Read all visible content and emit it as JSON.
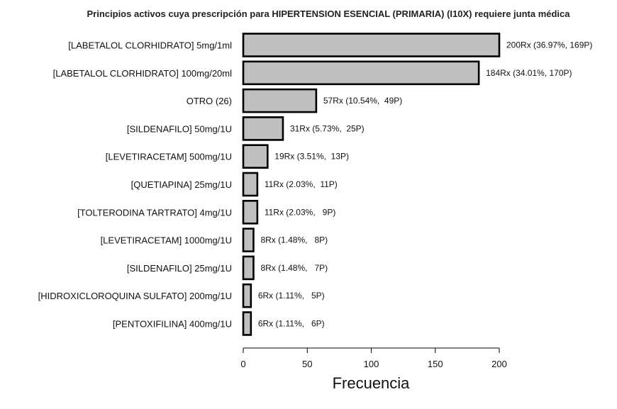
{
  "chart_data": {
    "type": "bar",
    "orientation": "horizontal",
    "title": "Principios activos cuya prescripción para HIPERTENSION ESENCIAL (PRIMARIA) (I10X) requiere junta médica",
    "xlabel": "Frecuencia",
    "ylabel": "",
    "xlim": [
      0,
      200
    ],
    "x_ticks": [
      0,
      50,
      100,
      150,
      200
    ],
    "bar_color": "#c0c0c0",
    "bar_stroke": "#000000",
    "categories": [
      "[LABETALOL CLORHIDRATO] 5mg/1ml",
      "[LABETALOL CLORHIDRATO] 100mg/20ml",
      "OTRO (26)",
      "[SILDENAFILO] 50mg/1U",
      "[LEVETIRACETAM] 500mg/1U",
      "[QUETIAPINA] 25mg/1U",
      "[TOLTERODINA TARTRATO] 4mg/1U",
      "[LEVETIRACETAM] 1000mg/1U",
      "[SILDENAFILO] 25mg/1U",
      "[HIDROXICLOROQUINA SULFATO] 200mg/1U",
      "[PENTOXIFILINA] 400mg/1U"
    ],
    "values": [
      200,
      184,
      57,
      31,
      19,
      11,
      11,
      8,
      8,
      6,
      6
    ],
    "data_labels": [
      "200Rx (36.97%, 169P)",
      "184Rx (34.01%, 170P)",
      "57Rx (10.54%,  49P)",
      "31Rx (5.73%,  25P)",
      "19Rx (3.51%,  13P)",
      "11Rx (2.03%,  11P)",
      "11Rx (2.03%,   9P)",
      "8Rx (1.48%,   8P)",
      "8Rx (1.48%,   7P)",
      "6Rx (1.11%,   5P)",
      "6Rx (1.11%,   6P)"
    ],
    "grid": false,
    "legend": "none"
  }
}
